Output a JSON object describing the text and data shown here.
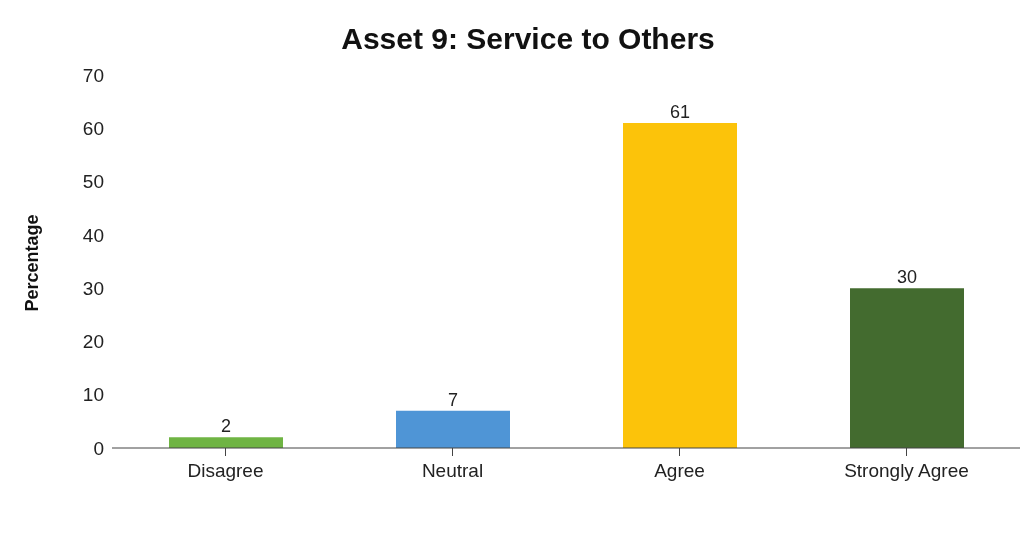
{
  "chart_data": {
    "type": "bar",
    "title": "Asset 9: Service to Others",
    "ylabel": "Percentage",
    "categories": [
      "Disagree",
      "Neutral",
      "Agree",
      "Strongly Agree"
    ],
    "values": [
      2,
      7,
      61,
      30
    ],
    "colors": [
      "#6fb443",
      "#4f95d6",
      "#fcc30a",
      "#436b2f"
    ],
    "ylim": [
      0,
      70
    ],
    "yticks": [
      0,
      10,
      20,
      30,
      40,
      50,
      60,
      70
    ],
    "grid": false,
    "data_labels": true
  }
}
